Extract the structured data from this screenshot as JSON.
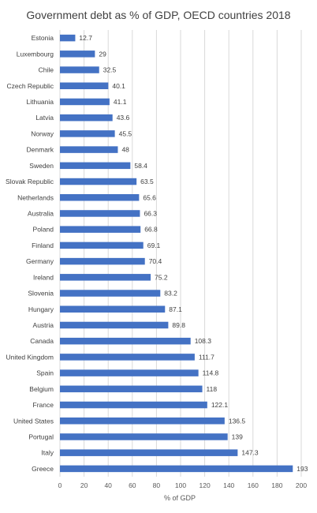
{
  "chart_data": {
    "type": "bar",
    "orientation": "horizontal",
    "title": "Government debt as % of GDP, OECD countries 2018",
    "xlabel": "% of GDP",
    "ylabel": "",
    "xlim": [
      0,
      200
    ],
    "x_ticks": [
      0,
      20,
      40,
      60,
      80,
      100,
      120,
      140,
      160,
      180,
      200
    ],
    "grid": "vertical",
    "legend": "none",
    "bar_color": "#4472C4",
    "categories": [
      "Estonia",
      "Luxembourg",
      "Chile",
      "Czech Republic",
      "Lithuania",
      "Latvia",
      "Norway",
      "Denmark",
      "Sweden",
      "Slovak Republic",
      "Netherlands",
      "Australia",
      "Poland",
      "Finland",
      "Germany",
      "Ireland",
      "Slovenia",
      "Hungary",
      "Austria",
      "Canada",
      "United Kingdom",
      "Spain",
      "Belgium",
      "France",
      "United States",
      "Portugal",
      "Italy",
      "Greece"
    ],
    "values": [
      12.7,
      29,
      32.5,
      40.1,
      41.1,
      43.6,
      45.5,
      48,
      58.4,
      63.5,
      65.6,
      66.3,
      66.8,
      69.1,
      70.4,
      75.2,
      83.2,
      87.1,
      89.8,
      108.3,
      111.7,
      114.8,
      118,
      122.1,
      136.5,
      139,
      147.3,
      193
    ]
  }
}
